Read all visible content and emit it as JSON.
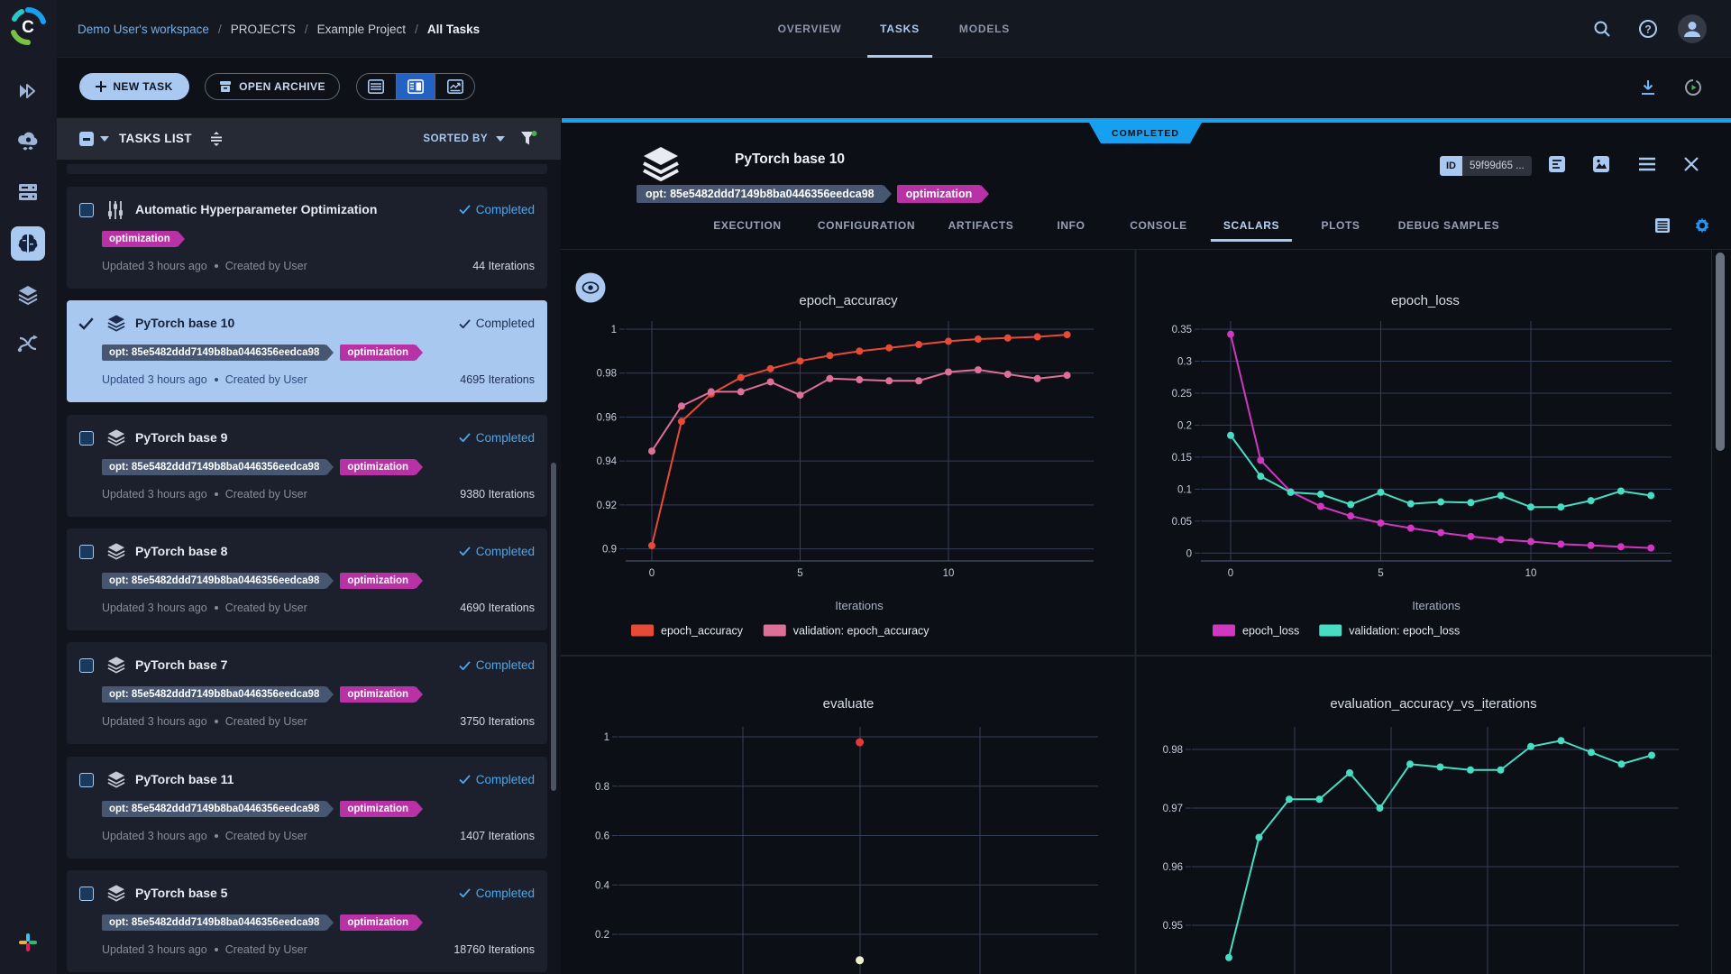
{
  "brand": {
    "name": "clearml-logo",
    "logo_letter": "C"
  },
  "topbar": {
    "breadcrumb": [
      "Demo User's workspace",
      "PROJECTS",
      "Example Project",
      "All Tasks"
    ],
    "separator": "/",
    "tabs": [
      {
        "label": "OVERVIEW",
        "active": false
      },
      {
        "label": "TASKS",
        "active": true
      },
      {
        "label": "MODELS",
        "active": false
      }
    ]
  },
  "toolbar": {
    "new_task": "NEW TASK",
    "open_archive": "OPEN ARCHIVE"
  },
  "list": {
    "title": "TASKS LIST",
    "sorted_by": "SORTED BY",
    "tasks": [
      {
        "title": "Automatic Hyperparameter Optimization",
        "icon": "tune",
        "status": "Completed",
        "tags": [
          {
            "text": "optimization",
            "type": "pink"
          }
        ],
        "updated": "Updated 3 hours ago",
        "author": "Created by User",
        "iterations": "44 Iterations",
        "selected": false
      },
      {
        "title": "PyTorch base 10",
        "icon": "stack",
        "status": "Completed",
        "tags": [
          {
            "text": "opt: 85e5482ddd7149b8ba0446356eedca98",
            "type": "slate"
          },
          {
            "text": "optimization",
            "type": "pink"
          }
        ],
        "updated": "Updated 3 hours ago",
        "author": "Created by User",
        "iterations": "4695 Iterations",
        "selected": true
      },
      {
        "title": "PyTorch base 9",
        "icon": "stack",
        "status": "Completed",
        "tags": [
          {
            "text": "opt: 85e5482ddd7149b8ba0446356eedca98",
            "type": "slate"
          },
          {
            "text": "optimization",
            "type": "pink"
          }
        ],
        "updated": "Updated 3 hours ago",
        "author": "Created by User",
        "iterations": "9380 Iterations",
        "selected": false
      },
      {
        "title": "PyTorch base 8",
        "icon": "stack",
        "status": "Completed",
        "tags": [
          {
            "text": "opt: 85e5482ddd7149b8ba0446356eedca98",
            "type": "slate"
          },
          {
            "text": "optimization",
            "type": "pink"
          }
        ],
        "updated": "Updated 3 hours ago",
        "author": "Created by User",
        "iterations": "4690 Iterations",
        "selected": false
      },
      {
        "title": "PyTorch base 7",
        "icon": "stack",
        "status": "Completed",
        "tags": [
          {
            "text": "opt: 85e5482ddd7149b8ba0446356eedca98",
            "type": "slate"
          },
          {
            "text": "optimization",
            "type": "pink"
          }
        ],
        "updated": "Updated 3 hours ago",
        "author": "Created by User",
        "iterations": "3750 Iterations",
        "selected": false
      },
      {
        "title": "PyTorch base 11",
        "icon": "stack",
        "status": "Completed",
        "tags": [
          {
            "text": "opt: 85e5482ddd7149b8ba0446356eedca98",
            "type": "slate"
          },
          {
            "text": "optimization",
            "type": "pink"
          }
        ],
        "updated": "Updated 3 hours ago",
        "author": "Created by User",
        "iterations": "1407 Iterations",
        "selected": false
      },
      {
        "title": "PyTorch base 5",
        "icon": "stack",
        "status": "Completed",
        "tags": [
          {
            "text": "opt: 85e5482ddd7149b8ba0446356eedca98",
            "type": "slate"
          },
          {
            "text": "optimization",
            "type": "pink"
          }
        ],
        "updated": "Updated 3 hours ago",
        "author": "Created by User",
        "iterations": "18760 Iterations",
        "selected": false
      }
    ]
  },
  "detail": {
    "status": "COMPLETED",
    "title": "PyTorch base 10",
    "id_label": "ID",
    "id_value": "59f99d65 ...",
    "tags": [
      {
        "text": "opt: 85e5482ddd7149b8ba0446356eedca98",
        "type": "slate"
      },
      {
        "text": "optimization",
        "type": "pink"
      }
    ],
    "tabs": [
      "EXECUTION",
      "CONFIGURATION",
      "ARTIFACTS",
      "INFO",
      "CONSOLE",
      "SCALARS",
      "PLOTS",
      "DEBUG SAMPLES"
    ],
    "active_tab": "SCALARS"
  },
  "chart_data": [
    {
      "type": "line",
      "title": "epoch_accuracy",
      "xlabel": "Iterations",
      "x": [
        0,
        1,
        2,
        3,
        4,
        5,
        6,
        7,
        8,
        9,
        10,
        11,
        12,
        13,
        14
      ],
      "xticks": [
        0,
        5,
        10
      ],
      "yticks": [
        1,
        0.98,
        0.96,
        0.94,
        0.92,
        0.9
      ],
      "series": [
        {
          "name": "epoch_accuracy",
          "color": "#e74b37",
          "values": [
            0.9015,
            0.958,
            0.9705,
            0.978,
            0.982,
            0.9855,
            0.988,
            0.99,
            0.9915,
            0.993,
            0.9945,
            0.9955,
            0.996,
            0.9965,
            0.9975
          ]
        },
        {
          "name": "validation: epoch_accuracy",
          "color": "#de6f96",
          "values": [
            0.9445,
            0.965,
            0.9715,
            0.9715,
            0.976,
            0.97,
            0.9775,
            0.977,
            0.9765,
            0.9765,
            0.9805,
            0.9815,
            0.9795,
            0.9775,
            0.979
          ]
        }
      ]
    },
    {
      "type": "line",
      "title": "epoch_loss",
      "xlabel": "Iterations",
      "x": [
        0,
        1,
        2,
        3,
        4,
        5,
        6,
        7,
        8,
        9,
        10,
        11,
        12,
        13,
        14
      ],
      "xticks": [
        0,
        5,
        10
      ],
      "yticks": [
        0.35,
        0.3,
        0.25,
        0.2,
        0.15,
        0.1,
        0.05,
        0
      ],
      "series": [
        {
          "name": "epoch_loss",
          "color": "#d137c1",
          "values": [
            0.342,
            0.145,
            0.096,
            0.073,
            0.058,
            0.047,
            0.039,
            0.032,
            0.026,
            0.021,
            0.018,
            0.014,
            0.012,
            0.01,
            0.008
          ]
        },
        {
          "name": "validation: epoch_loss",
          "color": "#47ddc3",
          "values": [
            0.184,
            0.12,
            0.095,
            0.092,
            0.076,
            0.095,
            0.077,
            0.08,
            0.079,
            0.09,
            0.072,
            0.072,
            0.082,
            0.097,
            0.09
          ]
        }
      ]
    },
    {
      "type": "scatter",
      "title": "evaluate",
      "yticks": [
        1,
        0.8,
        0.6,
        0.4,
        0.2
      ],
      "series": [
        {
          "name": "evaluate",
          "color": "#e53935",
          "points": [
            {
              "x_frac": 0.503,
              "y": 0.978
            }
          ]
        },
        {
          "name": "evaluate",
          "color": "#eef2cf",
          "points": [
            {
              "x_frac": 0.503,
              "y": 0.095
            }
          ]
        }
      ]
    },
    {
      "type": "line",
      "title": "evaluation_accuracy_vs_iterations",
      "x": [
        0,
        1,
        2,
        3,
        4,
        5,
        6,
        7,
        8,
        9,
        10,
        11,
        12,
        13,
        14
      ],
      "yticks": [
        0.98,
        0.97,
        0.96,
        0.95
      ],
      "series": [
        {
          "name": "evaluation_accuracy_vs_iterations",
          "color": "#47ddc3",
          "values": [
            0.9445,
            0.965,
            0.9715,
            0.9715,
            0.976,
            0.97,
            0.9775,
            0.977,
            0.9765,
            0.9765,
            0.9805,
            0.9815,
            0.9795,
            0.9775,
            0.979
          ]
        }
      ]
    }
  ],
  "colors": {
    "accent": "#a9c9f1",
    "bright_blue": "#18a0f0",
    "active_toggle": "#2162c4",
    "completed": "#4da6ea",
    "tag_pink": "#b832a6",
    "tag_slate": "#475771",
    "grid": "#363e59",
    "card_bg": "#1b202c",
    "selected_card_bg": "#a8c8f0"
  }
}
